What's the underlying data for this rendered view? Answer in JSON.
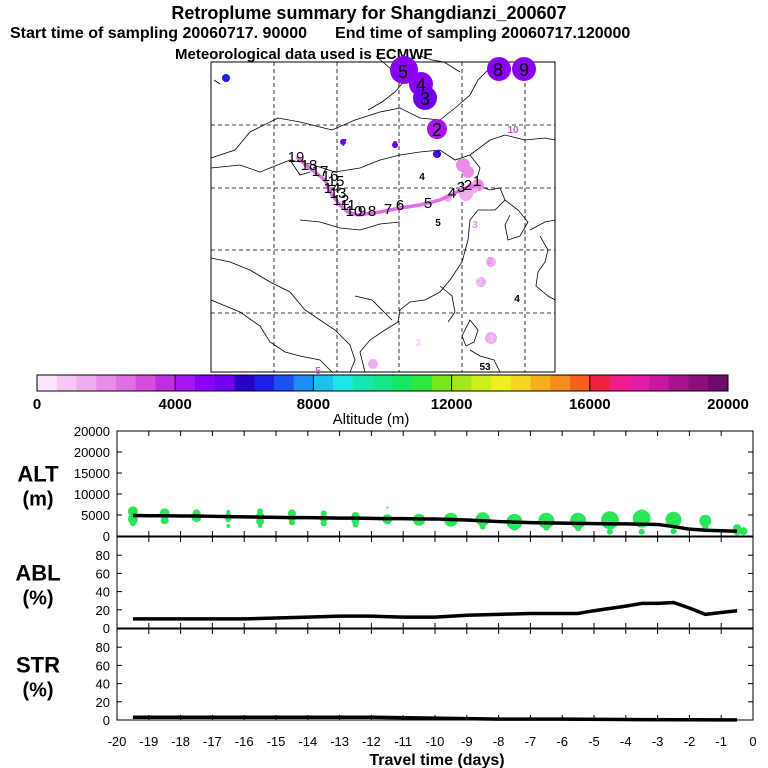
{
  "title": "Retroplume summary for Shangdianzi_200607",
  "subtitle_start": "Start time of sampling 20060717. 90000",
  "subtitle_end": "End time of sampling 20060717.120000",
  "subtitle_met": "Meteorological data used is ECMWF",
  "chart_data": [
    {
      "type": "map",
      "name": "retroplume-map",
      "description_labels": [
        "1",
        "2",
        "3",
        "4",
        "5",
        "6",
        "7",
        "8",
        "9",
        "10",
        "11",
        "12",
        "13",
        "14",
        "15",
        "16",
        "17",
        "18",
        "19"
      ],
      "trajectory_days": [
        1,
        2,
        3,
        4,
        5,
        6,
        7,
        8,
        9,
        10,
        11,
        12,
        13,
        14,
        15,
        16,
        17,
        18,
        19
      ],
      "trajectory_altitude_m": [
        2000,
        2300,
        2500,
        2700,
        2800,
        2900,
        3000,
        3100,
        3200,
        3300,
        3400,
        3500,
        3500,
        3600,
        3600,
        3700,
        3800,
        3800,
        3900
      ]
    },
    {
      "type": "colorbar",
      "name": "altitude-colorbar",
      "xlabel": "Altitude (m)",
      "range": [
        0,
        20000
      ],
      "tick_labels": [
        "0",
        "4000",
        "8000",
        "12000",
        "16000",
        "20000"
      ],
      "colors": [
        "#fce6fc",
        "#f5c8f5",
        "#efadef",
        "#e98de9",
        "#e06ee4",
        "#d44ee0",
        "#c12ee0",
        "#a616f0",
        "#8a00f5",
        "#7000f0",
        "#2a00c8",
        "#1e1ee6",
        "#1e50f0",
        "#1e8cf0",
        "#1ec0f0",
        "#1ee6e6",
        "#18e6b0",
        "#18e68a",
        "#18e660",
        "#30e640",
        "#7ae61e",
        "#a6e61e",
        "#ccf01e",
        "#f0f01e",
        "#f6d61e",
        "#f6b01e",
        "#f68c1e",
        "#f6601e",
        "#f02040",
        "#f01c8a",
        "#e01ca8",
        "#c818a0",
        "#a8148a",
        "#8c1078",
        "#6e0c6a"
      ]
    },
    {
      "type": "line",
      "name": "ALT",
      "ylabel_1": "ALT",
      "ylabel_2": "(m)",
      "ylim": [
        0,
        20000
      ],
      "yticks": [
        "0",
        "5000",
        "10000",
        "15000",
        "20000"
      ],
      "x": [
        -19.5,
        -19,
        -18.5,
        -18,
        -17.5,
        -17,
        -16.5,
        -16,
        -15.5,
        -15,
        -14.5,
        -14,
        -13.5,
        -13,
        -12.5,
        -12,
        -11.5,
        -11,
        -10.5,
        -10,
        -9.5,
        -9,
        -8.5,
        -8,
        -7.5,
        -7,
        -6.5,
        -6,
        -5.5,
        -5,
        -4.5,
        -4,
        -3.5,
        -3,
        -2.5,
        -2,
        -1.5,
        -1,
        -0.5
      ],
      "values": [
        3900,
        3850,
        3850,
        3800,
        3800,
        3750,
        3700,
        3650,
        3600,
        3550,
        3500,
        3500,
        3450,
        3400,
        3400,
        3350,
        3300,
        3300,
        3250,
        3250,
        3150,
        3050,
        2900,
        2750,
        2650,
        2550,
        2500,
        2450,
        2400,
        2350,
        2300,
        2300,
        2250,
        2200,
        1800,
        1300,
        1100,
        1000,
        900
      ],
      "scatter": [
        {
          "x": -19.5,
          "y": 4700,
          "r": 5
        },
        {
          "x": -19.5,
          "y": 3200,
          "r": 5
        },
        {
          "x": -19.5,
          "y": 2400,
          "r": 3
        },
        {
          "x": -18.5,
          "y": 4300,
          "r": 5
        },
        {
          "x": -18.5,
          "y": 3000,
          "r": 4
        },
        {
          "x": -17.5,
          "y": 4300,
          "r": 4
        },
        {
          "x": -17.5,
          "y": 3600,
          "r": 5
        },
        {
          "x": -16.5,
          "y": 4600,
          "r": 2
        },
        {
          "x": -16.5,
          "y": 3900,
          "r": 3
        },
        {
          "x": -16.5,
          "y": 3200,
          "r": 3
        },
        {
          "x": -16.5,
          "y": 1900,
          "r": 2
        },
        {
          "x": -15.5,
          "y": 4700,
          "r": 3
        },
        {
          "x": -15.5,
          "y": 3800,
          "r": 4
        },
        {
          "x": -15.5,
          "y": 2800,
          "r": 4
        },
        {
          "x": -15.5,
          "y": 1900,
          "r": 2
        },
        {
          "x": -14.5,
          "y": 4300,
          "r": 4
        },
        {
          "x": -14.5,
          "y": 3500,
          "r": 4
        },
        {
          "x": -14.5,
          "y": 2600,
          "r": 3
        },
        {
          "x": -13.5,
          "y": 4300,
          "r": 3
        },
        {
          "x": -13.5,
          "y": 3400,
          "r": 4
        },
        {
          "x": -13.5,
          "y": 2400,
          "r": 3
        },
        {
          "x": -12.5,
          "y": 3800,
          "r": 4
        },
        {
          "x": -12.5,
          "y": 3000,
          "r": 4
        },
        {
          "x": -12.5,
          "y": 2200,
          "r": 3
        },
        {
          "x": -11.5,
          "y": 3200,
          "r": 5
        },
        {
          "x": -11.5,
          "y": 5400,
          "r": 1
        },
        {
          "x": -10.5,
          "y": 3100,
          "r": 6
        },
        {
          "x": -9.5,
          "y": 3100,
          "r": 7
        },
        {
          "x": -8.5,
          "y": 3200,
          "r": 7
        },
        {
          "x": -8.5,
          "y": 1800,
          "r": 3
        },
        {
          "x": -7.5,
          "y": 2700,
          "r": 8
        },
        {
          "x": -7.5,
          "y": 1600,
          "r": 3
        },
        {
          "x": -6.5,
          "y": 2900,
          "r": 8
        },
        {
          "x": -6.5,
          "y": 1600,
          "r": 3
        },
        {
          "x": -5.5,
          "y": 2900,
          "r": 8
        },
        {
          "x": -5.5,
          "y": 1500,
          "r": 3
        },
        {
          "x": -4.5,
          "y": 3000,
          "r": 9
        },
        {
          "x": -4.5,
          "y": 800,
          "r": 3
        },
        {
          "x": -3.5,
          "y": 3300,
          "r": 9
        },
        {
          "x": -3.5,
          "y": 800,
          "r": 3
        },
        {
          "x": -2.5,
          "y": 3100,
          "r": 8
        },
        {
          "x": -2.5,
          "y": 900,
          "r": 3
        },
        {
          "x": -1.5,
          "y": 2900,
          "r": 6
        },
        {
          "x": -1.5,
          "y": 1700,
          "r": 3
        },
        {
          "x": -0.5,
          "y": 1500,
          "r": 4
        },
        {
          "x": -0.5,
          "y": 900,
          "r": 4
        },
        {
          "x": -0.3,
          "y": 900,
          "r": 4
        }
      ],
      "scatter_color": "#2ce659"
    },
    {
      "type": "line",
      "name": "ABL",
      "ylabel_1": "ABL",
      "ylabel_2": "(%)",
      "ylim": [
        0,
        100
      ],
      "yticks": [
        "0",
        "20",
        "40",
        "60",
        "80"
      ],
      "x": [
        -19.5,
        -18,
        -17,
        -16,
        -15,
        -14,
        -13,
        -12,
        -11,
        -10,
        -9,
        -8,
        -7,
        -6,
        -5.5,
        -5,
        -4,
        -3.5,
        -3,
        -2.5,
        -2,
        -1.5,
        -1,
        -0.5
      ],
      "values": [
        10,
        10,
        10,
        10,
        11,
        12,
        13,
        13,
        12,
        12,
        14,
        15,
        16,
        16,
        16,
        19,
        24,
        27,
        27,
        28,
        22,
        15,
        17,
        19
      ]
    },
    {
      "type": "line",
      "name": "STR",
      "ylabel_1": "STR",
      "ylabel_2": "(%)",
      "ylim": [
        0,
        100
      ],
      "yticks": [
        "0",
        "20",
        "40",
        "60",
        "80"
      ],
      "x": [
        -19.5,
        -18,
        -16,
        -14,
        -12,
        -10,
        -8,
        -6,
        -4,
        -2,
        -1,
        -0.5
      ],
      "values": [
        3,
        3,
        3,
        3,
        3,
        2,
        1,
        1,
        0.5,
        0.3,
        0.2,
        0.2
      ]
    }
  ],
  "xaxis": {
    "label": "Travel time (days)",
    "range": [
      -20,
      0
    ],
    "tick_labels": [
      "-20",
      "-19",
      "-18",
      "-17",
      "-16",
      "-15",
      "-14",
      "-13",
      "-12",
      "-11",
      "-10",
      "-9",
      "-8",
      "-7",
      "-6",
      "-5",
      "-4",
      "-3",
      "-2",
      "-1",
      "0"
    ]
  },
  "map_labels": [
    {
      "text": "5",
      "color": "#7000f0",
      "big": true
    },
    {
      "text": "4",
      "color": "#7000f0",
      "big": true
    },
    {
      "text": "3",
      "color": "#7000f0",
      "big": true
    },
    {
      "text": "8",
      "color": "#8a00f5",
      "big": true
    },
    {
      "text": "9",
      "color": "#8a00f5",
      "big": true
    },
    {
      "text": "2",
      "color": "#a616f0",
      "big": true
    },
    {
      "text": "10",
      "color": "#d44ee0",
      "big": false
    },
    {
      "text": "6",
      "color": "#1e1ee6",
      "big": false
    },
    {
      "text": "7",
      "color": "#7000f0",
      "big": false
    },
    {
      "text": "6",
      "color": "#7000f0",
      "big": false
    },
    {
      "text": "5",
      "color": "#7000f0",
      "big": false
    },
    {
      "text": "4",
      "color": "#000000",
      "big": false
    },
    {
      "text": "2",
      "color": "#e98de9",
      "big": false
    },
    {
      "text": "1",
      "color": "#e98de9",
      "big": false
    },
    {
      "text": "5",
      "color": "#000000",
      "big": false
    },
    {
      "text": "3",
      "color": "#e98de9",
      "big": false
    },
    {
      "text": "2",
      "color": "#e98de9",
      "big": false
    },
    {
      "text": "2",
      "color": "#f5c8f5",
      "big": false
    },
    {
      "text": "4",
      "color": "#000000",
      "big": false
    },
    {
      "text": "3",
      "color": "#f5c8f5",
      "big": false
    },
    {
      "text": "3",
      "color": "#f5c8f5",
      "big": false
    },
    {
      "text": "4",
      "color": "#efadef",
      "big": false
    },
    {
      "text": "5",
      "color": "#d44ee0",
      "big": false
    },
    {
      "text": "53",
      "color": "#000000",
      "big": false
    }
  ],
  "trajectory_labels": [
    "19",
    "18",
    "17",
    "16",
    "15",
    "14",
    "13",
    "12",
    "11",
    "10",
    "9",
    "8",
    "7",
    "6",
    "5",
    "4",
    "3",
    "2",
    "1"
  ]
}
